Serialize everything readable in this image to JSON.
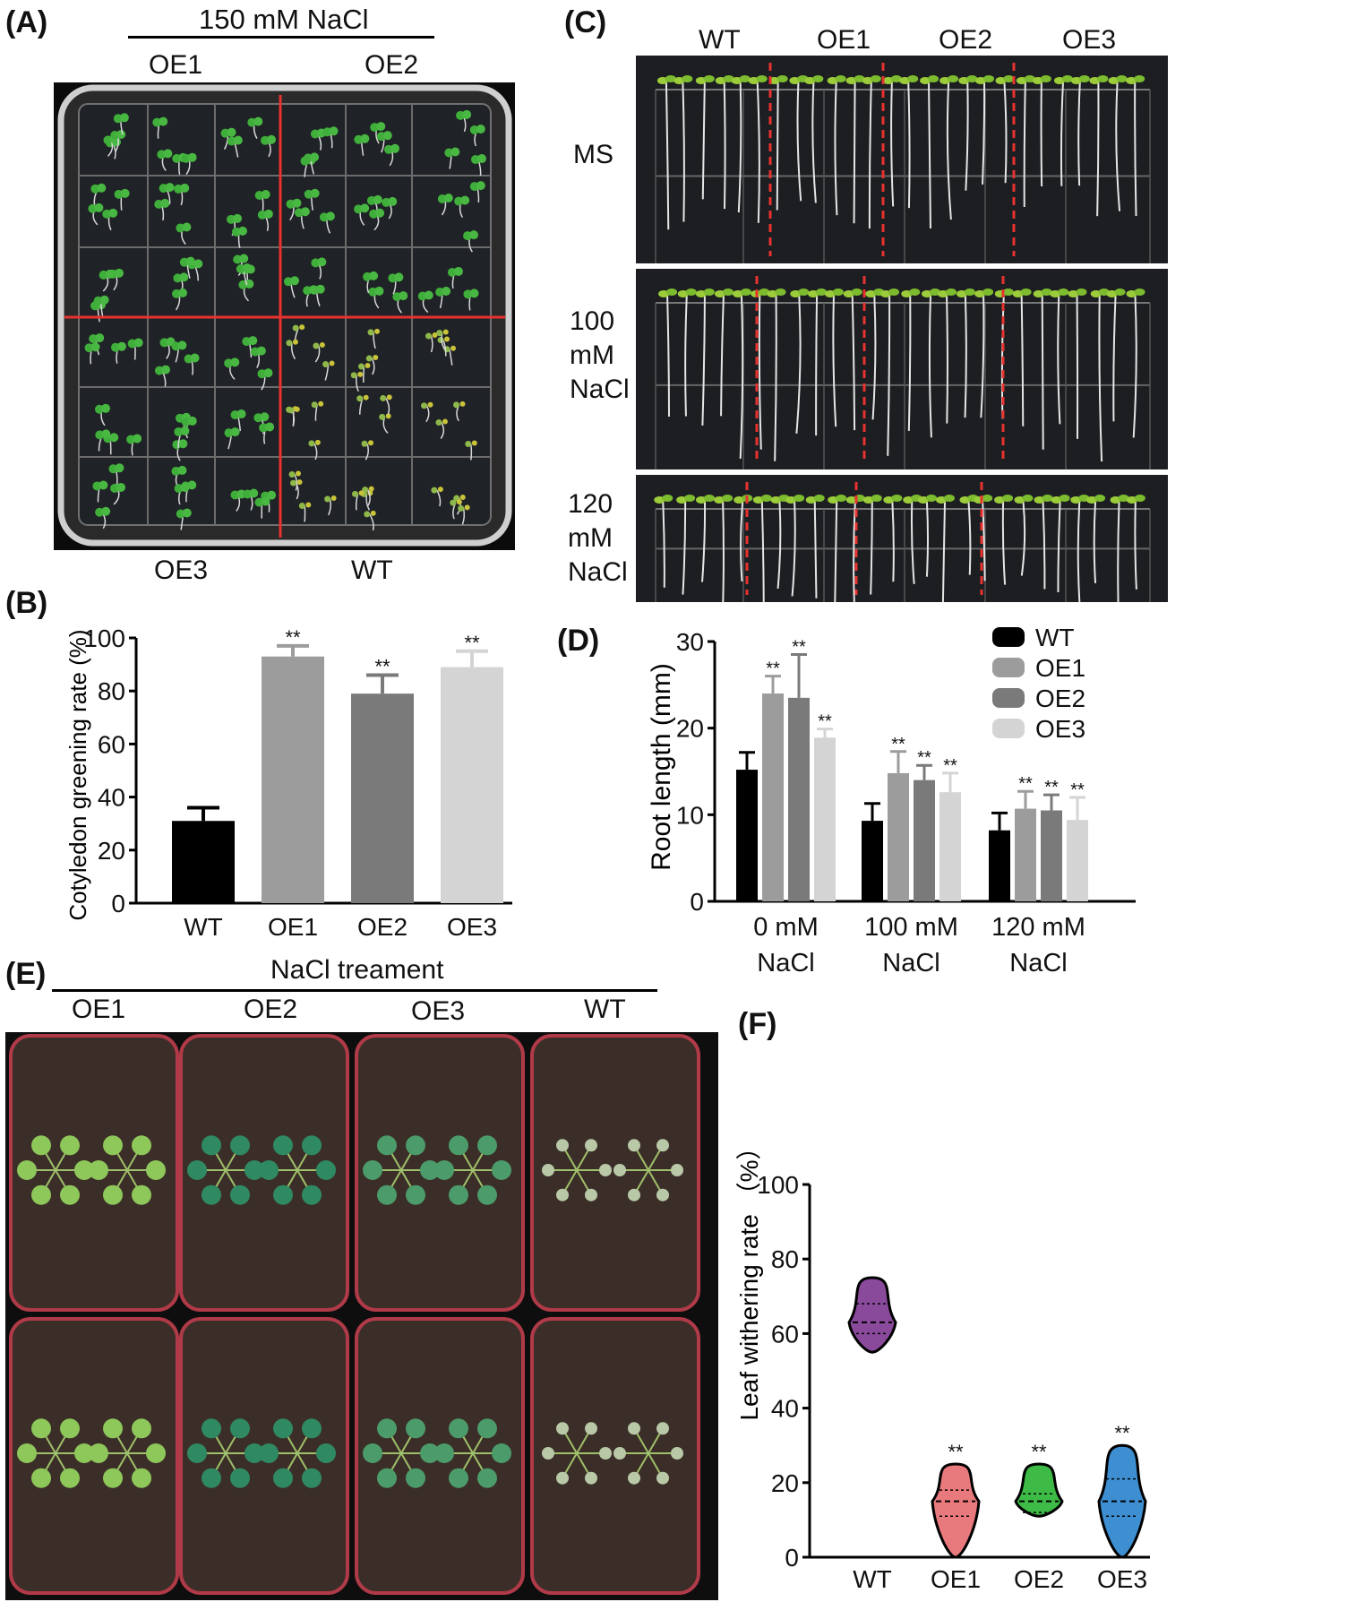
{
  "panel_a": {
    "label": "(A)",
    "title": "150 mM NaCl",
    "top_labels": [
      "OE1",
      "OE2"
    ],
    "bottom_labels": [
      "OE3",
      "WT"
    ]
  },
  "panel_c": {
    "label": "(C)",
    "columns": [
      "WT",
      "OE1",
      "OE2",
      "OE3"
    ],
    "rows": [
      {
        "line1": "MS",
        "line2": "",
        "line3": ""
      },
      {
        "line1": "100",
        "line2": "mM",
        "line3": "NaCl"
      },
      {
        "line1": "120",
        "line2": "mM",
        "line3": "NaCl"
      }
    ]
  },
  "panel_e": {
    "label": "(E)",
    "title": "NaCl treament",
    "columns": [
      "OE1",
      "OE2",
      "OE3",
      "WT"
    ]
  },
  "colors": {
    "WT": "#000000",
    "OE1": "#9c9c9c",
    "OE2": "#7a7a7a",
    "OE3": "#d4d4d4",
    "photo_bg": "#1b1b1b",
    "plate_border": "#cfcfcf",
    "red_line": "#e8322f"
  },
  "chart_data": [
    {
      "id": "B",
      "label": "(B)",
      "type": "bar",
      "title": "",
      "xlabel": "",
      "ylabel": "Cotyledon greening rate (%)",
      "ylim": [
        0,
        100
      ],
      "yticks": [
        0,
        20,
        40,
        60,
        80,
        100
      ],
      "categories": [
        "WT",
        "OE1",
        "OE2",
        "OE3"
      ],
      "values": [
        31,
        93,
        79,
        89
      ],
      "errors": [
        5,
        4,
        7,
        6
      ],
      "significance": [
        "",
        "**",
        "**",
        "**"
      ]
    },
    {
      "id": "D",
      "label": "(D)",
      "type": "bar",
      "title": "",
      "xlabel": "",
      "ylabel": "Root length (mm)",
      "ylim": [
        0,
        30
      ],
      "yticks": [
        0,
        10,
        20,
        30
      ],
      "categories": [
        {
          "line1": "0 mM",
          "line2": "NaCl"
        },
        {
          "line1": "100 mM",
          "line2": "NaCl"
        },
        {
          "line1": "120 mM",
          "line2": "NaCl"
        }
      ],
      "legend": [
        "WT",
        "OE1",
        "OE2",
        "OE3"
      ],
      "legend_position": "top-right",
      "series": [
        {
          "name": "WT",
          "values": [
            15.2,
            9.3,
            8.2
          ],
          "errors": [
            2.0,
            2.0,
            2.0
          ]
        },
        {
          "name": "OE1",
          "values": [
            24.0,
            14.8,
            10.7
          ],
          "errors": [
            2.0,
            2.5,
            2.0
          ]
        },
        {
          "name": "OE2",
          "values": [
            23.5,
            14.0,
            10.5
          ],
          "errors": [
            5.0,
            1.7,
            1.8
          ]
        },
        {
          "name": "OE3",
          "values": [
            18.9,
            12.6,
            9.4
          ],
          "errors": [
            1.0,
            2.2,
            2.6
          ]
        }
      ],
      "significance": [
        [
          "",
          "**",
          "**",
          "**"
        ],
        [
          "",
          "**",
          "**",
          "**"
        ],
        [
          "",
          "**",
          "**",
          "**"
        ]
      ]
    },
    {
      "id": "F",
      "label": "(F)",
      "type": "violin",
      "title": "",
      "xlabel": "",
      "ylabel": "Leaf withering rate （%）",
      "ylim": [
        0,
        100
      ],
      "yticks": [
        0,
        20,
        40,
        60,
        80,
        100
      ],
      "categories": [
        "WT",
        "OE1",
        "OE2",
        "OE3"
      ],
      "min": [
        55,
        0,
        11,
        0
      ],
      "max": [
        75,
        25,
        25,
        30
      ],
      "median": [
        63,
        15,
        15,
        15
      ],
      "quartiles": [
        [
          60,
          68
        ],
        [
          11,
          18
        ],
        [
          12,
          17
        ],
        [
          11,
          21
        ]
      ],
      "fill_colors": [
        "#8a4a9c",
        "#e8797d",
        "#3dbb46",
        "#3d8fd1"
      ],
      "significance": [
        "",
        "**",
        "**",
        "**"
      ]
    }
  ]
}
